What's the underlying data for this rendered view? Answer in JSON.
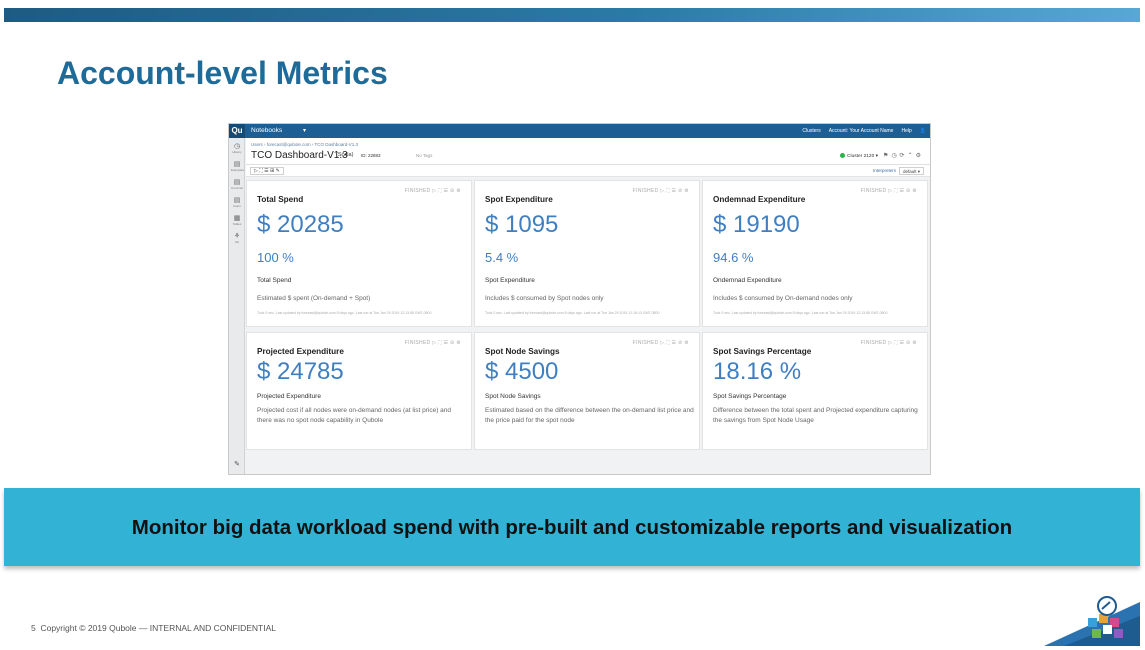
{
  "slide": {
    "title": "Account-level Metrics",
    "banner": "Monitor big data workload spend with pre-built and customizable reports and visualization",
    "page_number": "5",
    "footer": "Copyright © 2019 Qubole — INTERNAL AND CONFIDENTIAL"
  },
  "app": {
    "logo": "Qu",
    "topbar": {
      "notebooks_label": "Notebooks",
      "clusters_label": "Clusters",
      "account_label": "Account: Your Account Name",
      "help_label": "Help"
    },
    "breadcrumb": "Users › forecast@qubole.com › TCO Dashboard-V1.3",
    "notebook": {
      "title": "TCO Dashboard-V1.3",
      "language": "(Scala)",
      "id": "ID: 22883",
      "tags": "No Tags",
      "cluster": "Cluster 2120"
    },
    "toolbar": {
      "run_controls": "▷ ⛶ ☰ ⊞ ✎",
      "interpreters_label": "Interpreters",
      "default_label": "default ▾"
    },
    "sidebar": [
      {
        "icon": "clock-icon",
        "label": "History"
      },
      {
        "icon": "notebook-icon",
        "label": "Examples"
      },
      {
        "icon": "doc-icon",
        "label": "Common"
      },
      {
        "icon": "doc-icon",
        "label": "Users"
      },
      {
        "icon": "table-icon",
        "label": "Tables"
      },
      {
        "icon": "tree-icon",
        "label": "Git"
      }
    ],
    "status_label": "FINISHED",
    "status_icons": "▷ ⛶ ☰ ⊘ ⚙",
    "cards": [
      {
        "title": "Total Spend",
        "value": "$ 20285",
        "pct": "100 %",
        "sub": "Total Spend",
        "desc": "Estimated $ spent (On-demand + Spot)",
        "meta": "Took 0 sec. Last updated by forecast@qubole.com 8 days ago. Last run at Tue Jan 29 2019 12:13:58 GMT-0800"
      },
      {
        "title": "Spot Expenditure",
        "value": "$ 1095",
        "pct": "5.4 %",
        "sub": "Spot Expenditure",
        "desc": "Includes $ consumed by Spot nodes only",
        "meta": "Took 0 sec. Last updated by forecast@qubole.com 8 days ago. Last run at Tue Jan 29 2019 12:16:13 GMT-0800"
      },
      {
        "title": "Ondemnad Expenditure",
        "value": "$ 19190",
        "pct": "94.6 %",
        "sub": "Ondemnad Expenditure",
        "desc": "Includes $ consumed by On-demand nodes only",
        "meta": "Took 0 sec. Last updated by forecast@qubole.com 8 days ago. Last run at Tue Jan 29 2019 12:13:58 GMT-0800"
      },
      {
        "title": "Projected Expenditure",
        "value": "$ 24785",
        "sub": "Projected Expenditure",
        "desc": "Projected cost if all nodes were on-demand nodes (at list price) and there was no spot node capability in Qubole"
      },
      {
        "title": "Spot Node Savings",
        "value": "$ 4500",
        "sub": "Spot Node Savings",
        "desc": "Estimated based on the difference between the on-demand list price and the price paid for the spot node"
      },
      {
        "title": "Spot Savings Percentage",
        "value": "18.16 %",
        "sub": "Spot Savings Percentage",
        "desc": "Difference between the total spent and Projected expenditure capturing the savings from Spot Node Usage"
      }
    ]
  },
  "colors": {
    "title": "#1e6b9a",
    "banner": "#32b3d6",
    "metric_blue": "#3f7fc1",
    "app_topbar": "#1d5f95"
  }
}
